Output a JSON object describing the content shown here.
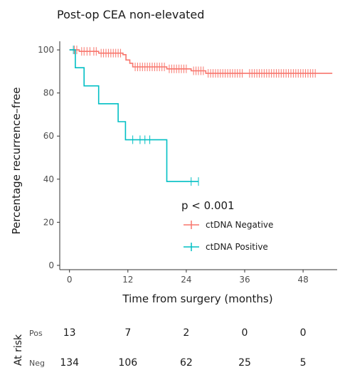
{
  "chart_data": {
    "type": "line",
    "title": "Post-op CEA non-elevated",
    "xlabel": "Time from surgery (months)",
    "ylabel": "Percentage recurrence–free",
    "xlim": [
      -2,
      55
    ],
    "ylim": [
      -2,
      104
    ],
    "xticks": [
      0,
      12,
      24,
      36,
      48
    ],
    "yticks": [
      0,
      20,
      40,
      60,
      80,
      100
    ],
    "grid": false,
    "legend_position": "lower-right",
    "annotation": "p < 0.001",
    "series": [
      {
        "name": "ctDNA Negative",
        "color": "#f8766d",
        "steps": [
          [
            0,
            100
          ],
          [
            2,
            99.3
          ],
          [
            6,
            98.5
          ],
          [
            11,
            97.8
          ],
          [
            11.6,
            95.3
          ],
          [
            12.4,
            93.8
          ],
          [
            13,
            92.1
          ],
          [
            20,
            91.2
          ],
          [
            25,
            90.3
          ],
          [
            28,
            89.1
          ],
          [
            54,
            89.1
          ]
        ],
        "censored": [
          [
            1,
            100
          ],
          [
            1.5,
            100
          ],
          [
            2.5,
            99.3
          ],
          [
            3,
            99.3
          ],
          [
            3.6,
            99.3
          ],
          [
            4.2,
            99.3
          ],
          [
            5,
            99.3
          ],
          [
            5.5,
            99.3
          ],
          [
            6.5,
            98.5
          ],
          [
            7,
            98.5
          ],
          [
            7.5,
            98.5
          ],
          [
            8,
            98.5
          ],
          [
            8.5,
            98.5
          ],
          [
            9,
            98.5
          ],
          [
            9.5,
            98.5
          ],
          [
            10,
            98.5
          ],
          [
            10.5,
            98.5
          ],
          [
            13.5,
            92.1
          ],
          [
            14,
            92.1
          ],
          [
            14.5,
            92.1
          ],
          [
            15,
            92.1
          ],
          [
            15.5,
            92.1
          ],
          [
            16,
            92.1
          ],
          [
            16.5,
            92.1
          ],
          [
            17,
            92.1
          ],
          [
            17.5,
            92.1
          ],
          [
            18,
            92.1
          ],
          [
            18.5,
            92.1
          ],
          [
            19,
            92.1
          ],
          [
            19.5,
            92.1
          ],
          [
            20.5,
            91.2
          ],
          [
            21,
            91.2
          ],
          [
            21.5,
            91.2
          ],
          [
            22,
            91.2
          ],
          [
            22.5,
            91.2
          ],
          [
            23,
            91.2
          ],
          [
            23.5,
            91.2
          ],
          [
            24,
            91.2
          ],
          [
            25.5,
            90.3
          ],
          [
            26,
            90.3
          ],
          [
            26.5,
            90.3
          ],
          [
            27,
            90.3
          ],
          [
            27.5,
            90.3
          ],
          [
            28.5,
            89.1
          ],
          [
            29,
            89.1
          ],
          [
            29.5,
            89.1
          ],
          [
            30,
            89.1
          ],
          [
            30.5,
            89.1
          ],
          [
            31,
            89.1
          ],
          [
            31.5,
            89.1
          ],
          [
            32,
            89.1
          ],
          [
            32.5,
            89.1
          ],
          [
            33,
            89.1
          ],
          [
            33.5,
            89.1
          ],
          [
            34,
            89.1
          ],
          [
            34.5,
            89.1
          ],
          [
            35,
            89.1
          ],
          [
            35.5,
            89.1
          ],
          [
            37,
            89.1
          ],
          [
            37.5,
            89.1
          ],
          [
            38,
            89.1
          ],
          [
            38.5,
            89.1
          ],
          [
            39,
            89.1
          ],
          [
            39.5,
            89.1
          ],
          [
            40,
            89.1
          ],
          [
            40.5,
            89.1
          ],
          [
            41,
            89.1
          ],
          [
            41.5,
            89.1
          ],
          [
            42,
            89.1
          ],
          [
            42.5,
            89.1
          ],
          [
            43,
            89.1
          ],
          [
            43.5,
            89.1
          ],
          [
            44,
            89.1
          ],
          [
            44.5,
            89.1
          ],
          [
            45,
            89.1
          ],
          [
            45.5,
            89.1
          ],
          [
            46,
            89.1
          ],
          [
            46.5,
            89.1
          ],
          [
            47,
            89.1
          ],
          [
            47.5,
            89.1
          ],
          [
            48,
            89.1
          ],
          [
            48.5,
            89.1
          ],
          [
            49,
            89.1
          ],
          [
            49.5,
            89.1
          ],
          [
            50,
            89.1
          ],
          [
            50.5,
            89.1
          ]
        ]
      },
      {
        "name": "ctDNA Positive",
        "color": "#00bfc4",
        "steps": [
          [
            0,
            100
          ],
          [
            1.2,
            91.7
          ],
          [
            3,
            83.3
          ],
          [
            6,
            75
          ],
          [
            10,
            66.7
          ],
          [
            11.5,
            58.3
          ],
          [
            20,
            38.9
          ],
          [
            26.5,
            38.9
          ]
        ],
        "censored": [
          [
            0.8,
            100
          ],
          [
            13,
            58.3
          ],
          [
            14.5,
            58.3
          ],
          [
            15.5,
            58.3
          ],
          [
            16.5,
            58.3
          ],
          [
            25,
            38.9
          ],
          [
            26.5,
            38.9
          ]
        ]
      }
    ]
  },
  "risk_table": {
    "title": "At risk",
    "times": [
      0,
      12,
      24,
      36,
      48
    ],
    "rows": [
      {
        "label": "Pos",
        "counts": [
          "13",
          "7",
          "2",
          "0",
          "0"
        ]
      },
      {
        "label": "Neg",
        "counts": [
          "134",
          "106",
          "62",
          "25",
          "5"
        ]
      }
    ]
  }
}
